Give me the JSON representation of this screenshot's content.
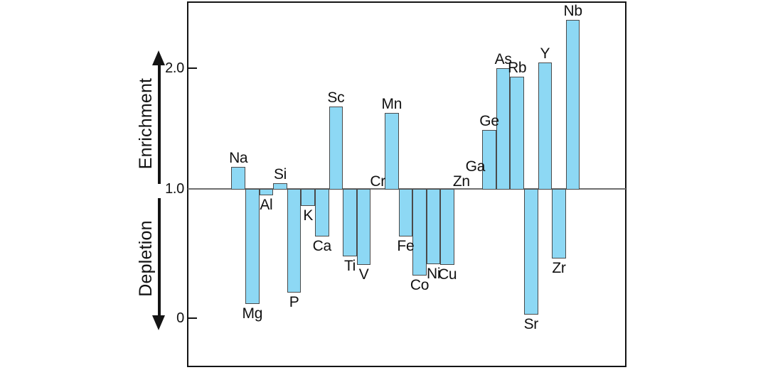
{
  "chart_data": {
    "type": "bar",
    "title": "",
    "description": "Enrichment/depletion factors of elements relative to a baseline of 1.0; bars above 1.0 show enrichment, bars below 1.0 show depletion",
    "axis_words": {
      "up": "Enrichment",
      "down": "Depletion"
    },
    "baseline": 1.0,
    "ylim": [
      -0.38,
      2.55
    ],
    "grid": "off",
    "legend": "none",
    "yticks": [
      {
        "label": "2.0",
        "value": 2.0
      },
      {
        "label": "1.0",
        "value": 1.0
      },
      {
        "label": "0",
        "value": 0.0
      }
    ],
    "categories": [
      "Na",
      "Mg",
      "Al",
      "Si",
      "P",
      "K",
      "Ca",
      "Sc",
      "Ti",
      "V",
      "Cr",
      "Mn",
      "Fe",
      "Co",
      "Ni",
      "Cu",
      "Zn",
      "Ga",
      "Ge",
      "As",
      "Rb",
      "Sr",
      "Y",
      "Zr",
      "Nb"
    ],
    "values": [
      1.18,
      0.11,
      0.95,
      1.05,
      0.2,
      0.87,
      0.63,
      1.68,
      0.48,
      0.41,
      1.0,
      1.63,
      0.63,
      0.33,
      0.42,
      0.41,
      1.0,
      1.0,
      1.49,
      2.0,
      1.93,
      0.03,
      2.05,
      0.46,
      2.4
    ],
    "elements": [
      {
        "symbol": "Na",
        "value": 1.18
      },
      {
        "symbol": "Mg",
        "value": 0.11
      },
      {
        "symbol": "Al",
        "value": 0.95
      },
      {
        "symbol": "Si",
        "value": 1.05
      },
      {
        "symbol": "P",
        "value": 0.2
      },
      {
        "symbol": "K",
        "value": 0.87
      },
      {
        "symbol": "Ca",
        "value": 0.63
      },
      {
        "symbol": "Sc",
        "value": 1.68
      },
      {
        "symbol": "Ti",
        "value": 0.48
      },
      {
        "symbol": "V",
        "value": 0.41
      },
      {
        "symbol": "Cr",
        "value": 1.0
      },
      {
        "symbol": "Mn",
        "value": 1.63
      },
      {
        "symbol": "Fe",
        "value": 0.63
      },
      {
        "symbol": "Co",
        "value": 0.33
      },
      {
        "symbol": "Ni",
        "value": 0.42
      },
      {
        "symbol": "Cu",
        "value": 0.41
      },
      {
        "symbol": "Zn",
        "value": 1.0
      },
      {
        "symbol": "Ga",
        "value": 1.0,
        "label_raised": true
      },
      {
        "symbol": "Ge",
        "value": 1.49
      },
      {
        "symbol": "As",
        "value": 2.0
      },
      {
        "symbol": "Rb",
        "value": 1.93
      },
      {
        "symbol": "Sr",
        "value": 0.03
      },
      {
        "symbol": "Y",
        "value": 2.05
      },
      {
        "symbol": "Zr",
        "value": 0.46
      },
      {
        "symbol": "Nb",
        "value": 2.4
      }
    ],
    "colors": {
      "bar_fill": "#8dd8f4",
      "bar_border": "#4a4a4a",
      "frame": "#141414",
      "baseline_line": "#6e6e6e",
      "text": "#111111"
    }
  }
}
